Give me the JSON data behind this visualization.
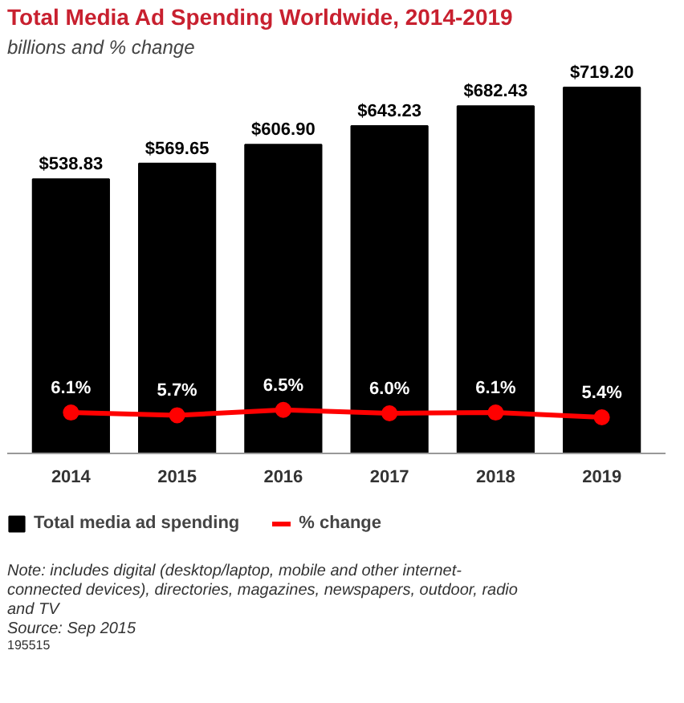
{
  "chart_data": {
    "type": "bar",
    "title": "Total Media Ad Spending Worldwide, 2014-2019",
    "subtitle": "billions and % change",
    "categories": [
      "2014",
      "2015",
      "2016",
      "2017",
      "2018",
      "2019"
    ],
    "series": [
      {
        "name": "Total media ad spending",
        "color": "#000000",
        "values": [
          538.83,
          569.65,
          606.9,
          643.23,
          682.43,
          719.2
        ],
        "value_labels": [
          "$538.83",
          "$569.65",
          "$606.90",
          "$643.23",
          "$682.43",
          "$719.20"
        ]
      },
      {
        "name": "% change",
        "type": "line",
        "axis": "y2",
        "color": "#ff0000",
        "values": [
          6.1,
          5.7,
          6.5,
          6.0,
          6.1,
          5.4
        ],
        "value_labels": [
          "6.1%",
          "5.7%",
          "6.5%",
          "6.0%",
          "6.1%",
          "5.4%"
        ]
      }
    ],
    "legend": "bottom",
    "marker": "circle",
    "annotations": [
      "Note: includes digital (desktop/laptop, mobile and other internet-connected devices), directories, magazines, newspapers, outdoor, radio and TV",
      "Source: Sep 2015",
      "195515"
    ]
  }
}
